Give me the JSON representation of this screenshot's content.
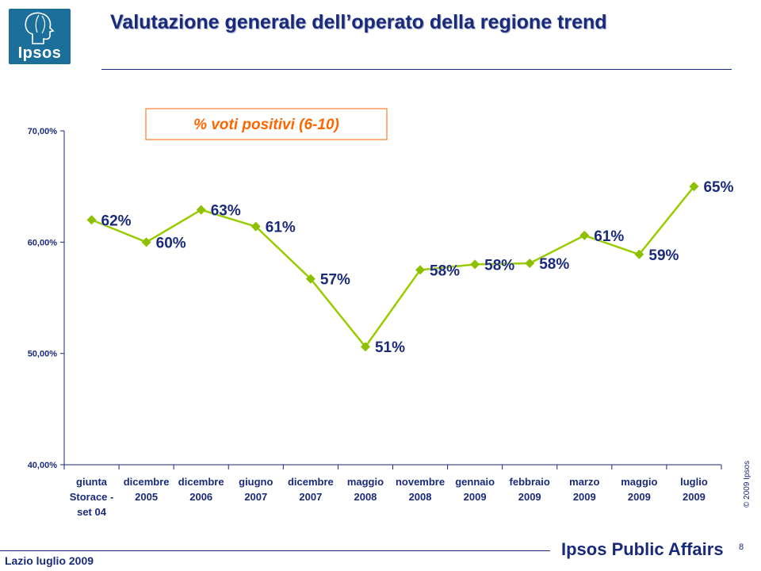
{
  "header": {
    "logo_text": "Ipsos",
    "title": "Valutazione generale dell’operato della regione trend"
  },
  "footer": {
    "left_text": "Lazio luglio 2009",
    "brand": "Ipsos Public Affairs",
    "page_number": "8",
    "copyright": "© 2009 Ipsos"
  },
  "chart_data": {
    "type": "line",
    "legend_box": "% voti positivi (6-10)",
    "categories": [
      [
        "giunta",
        "Storace -",
        "set 04"
      ],
      [
        "dicembre",
        "2005"
      ],
      [
        "dicembre",
        "2006"
      ],
      [
        "giugno",
        "2007"
      ],
      [
        "dicembre",
        "2007"
      ],
      [
        "maggio",
        "2008"
      ],
      [
        "novembre",
        "2008"
      ],
      [
        "gennaio",
        "2009"
      ],
      [
        "febbraio",
        "2009"
      ],
      [
        "marzo",
        "2009"
      ],
      [
        "maggio",
        "2009"
      ],
      [
        "luglio",
        "2009"
      ]
    ],
    "values": [
      62.0,
      60.0,
      62.9,
      61.4,
      56.7,
      50.6,
      57.5,
      58.0,
      58.1,
      60.6,
      58.9,
      65.0
    ],
    "data_labels": [
      "62%",
      "60%",
      "63%",
      "61%",
      "57%",
      "51%",
      "58%",
      "58%",
      "58%",
      "61%",
      "59%",
      "65%"
    ],
    "y_ticks": [
      "40,00%",
      "50,00%",
      "60,00%",
      "70,00%"
    ],
    "ylim": [
      40,
      70
    ],
    "grid": false,
    "colors": {
      "line": "#99cc00",
      "marker": "#8cc000",
      "data_label": "#1a2a7a",
      "legend_text": "#ff6600",
      "legend_border": "#ff6600",
      "axis": "#1a2a7a"
    }
  }
}
